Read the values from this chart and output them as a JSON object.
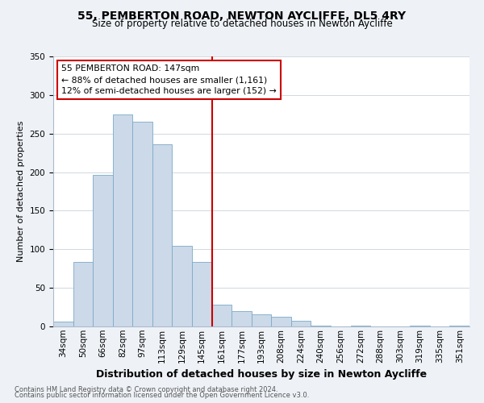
{
  "title": "55, PEMBERTON ROAD, NEWTON AYCLIFFE, DL5 4RY",
  "subtitle": "Size of property relative to detached houses in Newton Aycliffe",
  "xlabel": "Distribution of detached houses by size in Newton Aycliffe",
  "ylabel": "Number of detached properties",
  "bar_labels": [
    "34sqm",
    "50sqm",
    "66sqm",
    "82sqm",
    "97sqm",
    "113sqm",
    "129sqm",
    "145sqm",
    "161sqm",
    "177sqm",
    "193sqm",
    "208sqm",
    "224sqm",
    "240sqm",
    "256sqm",
    "272sqm",
    "288sqm",
    "303sqm",
    "319sqm",
    "335sqm",
    "351sqm"
  ],
  "bar_values": [
    6,
    84,
    196,
    275,
    265,
    236,
    104,
    84,
    28,
    20,
    16,
    13,
    7,
    1,
    0,
    1,
    0,
    0,
    1,
    0,
    1
  ],
  "bar_color": "#ccd9e8",
  "bar_edge_color": "#7aaac8",
  "vline_x_index": 7,
  "vline_color": "#cc0000",
  "annotation_title": "55 PEMBERTON ROAD: 147sqm",
  "annotation_line1": "← 88% of detached houses are smaller (1,161)",
  "annotation_line2": "12% of semi-detached houses are larger (152) →",
  "annotation_box_facecolor": "#ffffff",
  "annotation_box_edgecolor": "#cc0000",
  "ylim": [
    0,
    350
  ],
  "yticks": [
    0,
    50,
    100,
    150,
    200,
    250,
    300,
    350
  ],
  "footer1": "Contains HM Land Registry data © Crown copyright and database right 2024.",
  "footer2": "Contains public sector information licensed under the Open Government Licence v3.0.",
  "bg_color": "#eef2f7",
  "plot_bg_color": "#ffffff",
  "grid_color": "#d0d8e0",
  "title_fontsize": 10,
  "subtitle_fontsize": 8.5,
  "ylabel_fontsize": 8,
  "xlabel_fontsize": 9,
  "tick_fontsize": 7.5,
  "footer_fontsize": 6.0
}
